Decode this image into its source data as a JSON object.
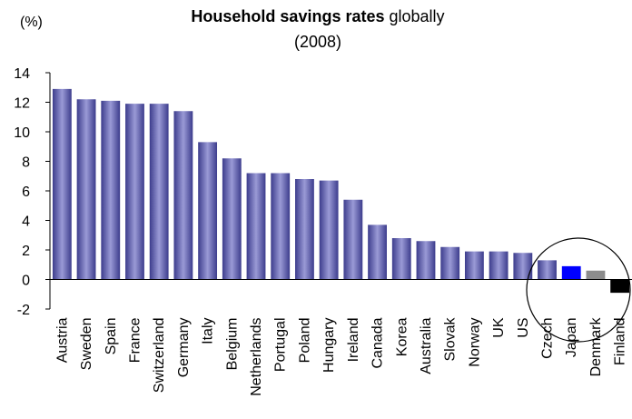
{
  "chart_data": {
    "type": "bar",
    "title_bold": "Household savings rates",
    "title_rest": "globally",
    "subtitle": "(2008)",
    "ylabel": "(%)",
    "xlabel": "",
    "ylim": [
      -2,
      14
    ],
    "yticks": [
      -2,
      0,
      2,
      4,
      6,
      8,
      10,
      12,
      14
    ],
    "categories": [
      "Austria",
      "Sweden",
      "Spain",
      "France",
      "Switzerland",
      "Germany",
      "Italy",
      "Belgium",
      "Netherlands",
      "Portugal",
      "Poland",
      "Hungary",
      "Ireland",
      "Canada",
      "Korea",
      "Australia",
      "Slovak",
      "Norway",
      "UK",
      "US",
      "Czech",
      "Japan",
      "Denmark",
      "Finland"
    ],
    "values": [
      12.9,
      12.2,
      12.1,
      11.9,
      11.9,
      11.4,
      9.3,
      8.2,
      7.2,
      7.2,
      6.8,
      6.7,
      5.4,
      3.7,
      2.8,
      2.6,
      2.2,
      1.9,
      1.9,
      1.8,
      1.3,
      0.9,
      0.6,
      -0.9
    ],
    "colors": {
      "default": "#7070b8",
      "Japan": "#0000ff",
      "Denmark": "#8c8c8c",
      "Finland": "#000000"
    },
    "annotation": "circle-highlight",
    "grid": false,
    "legend": "none"
  }
}
